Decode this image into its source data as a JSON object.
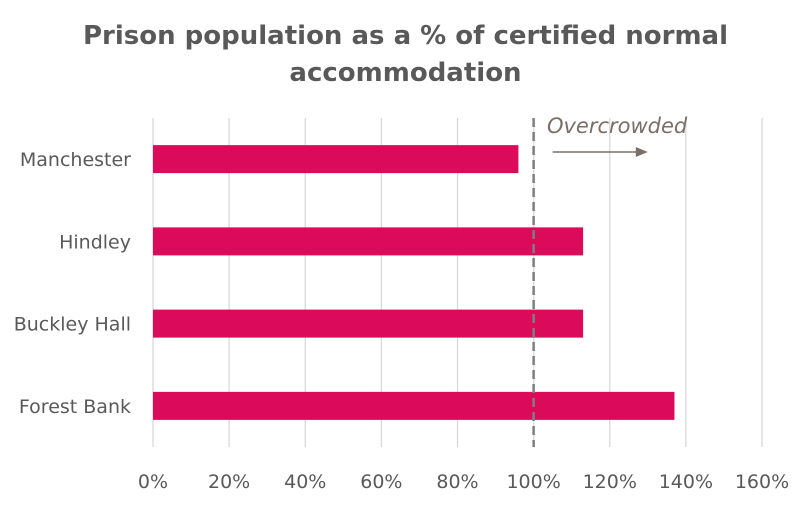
{
  "chart_data": {
    "type": "bar",
    "orientation": "horizontal",
    "title_lines": [
      "Prison population as a % of certified normal",
      "accommodation"
    ],
    "categories": [
      "Manchester",
      "Hindley",
      "Buckley Hall",
      "Forest Bank"
    ],
    "values": [
      96,
      113,
      113,
      137
    ],
    "xlim": [
      0,
      160
    ],
    "x_ticks": [
      "0%",
      "20%",
      "40%",
      "60%",
      "80%",
      "100%",
      "120%",
      "140%",
      "160%"
    ],
    "x_tick_values": [
      0,
      20,
      40,
      60,
      80,
      100,
      120,
      140,
      160
    ],
    "grid": "vertical",
    "bar_color": "#dc0a5a",
    "reference_line": {
      "value": 100,
      "style": "dashed",
      "color": "#7f7f7f"
    },
    "annotation": {
      "text": "Overcrowded",
      "arrow_from": 105,
      "arrow_to": 130,
      "color": "#7b6e69"
    }
  }
}
